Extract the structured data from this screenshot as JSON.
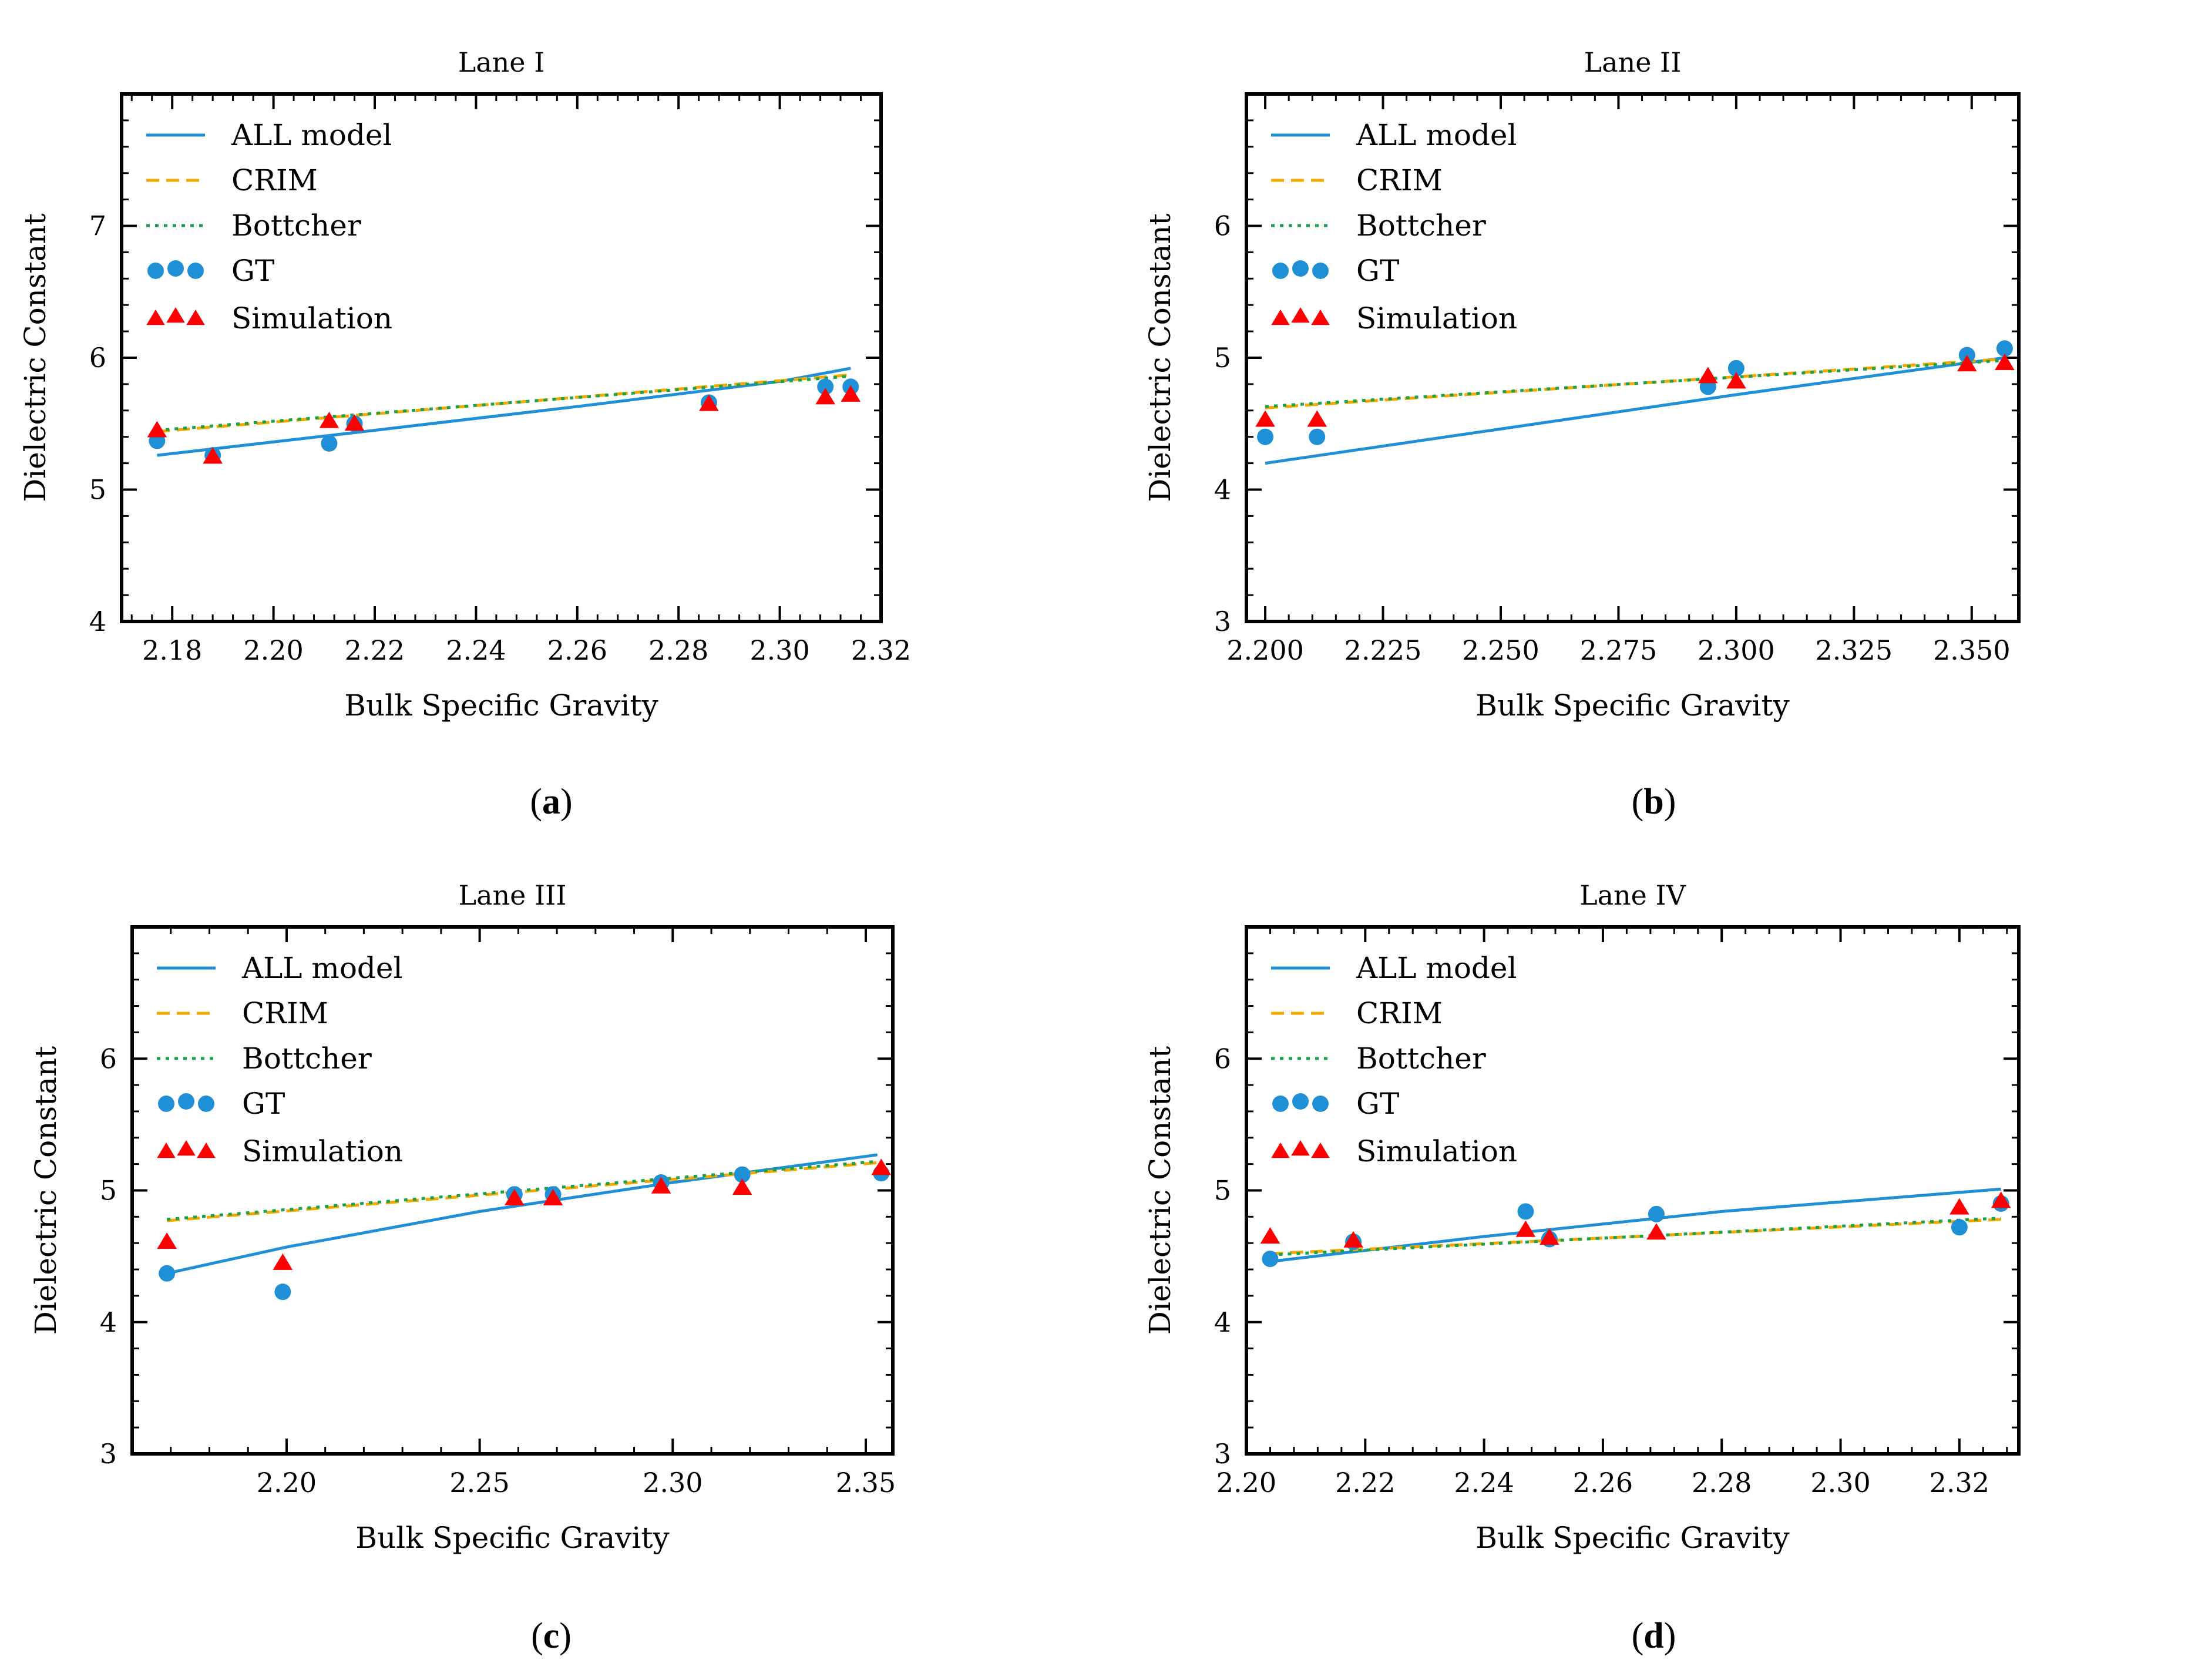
{
  "colors": {
    "all": "#1f8fd6",
    "crim": "#f5a800",
    "bottcher": "#1aa34a",
    "gt": "#1f8fd6",
    "sim": "#ff0000"
  },
  "chart_data": [
    {
      "id": "a",
      "type": "line+scatter",
      "title": "Lane I",
      "caption_letter": "a",
      "xlabel": "Bulk Specific Gravity",
      "ylabel": "Dielectric Constant",
      "xlim": [
        2.17,
        2.32
      ],
      "ylim": [
        4,
        8
      ],
      "xticks": [
        2.18,
        2.2,
        2.22,
        2.24,
        2.26,
        2.28,
        2.3,
        2.32
      ],
      "xdec": 2,
      "yticks": [
        4,
        5,
        6,
        7
      ],
      "ydec": 0,
      "yminor": 0.2,
      "legend": [
        "ALL model",
        "CRIM",
        "Bottcher",
        "GT",
        "Simulation"
      ],
      "all_model": {
        "x": [
          2.177,
          2.22,
          2.26,
          2.3,
          2.314
        ],
        "y": [
          5.26,
          5.45,
          5.63,
          5.82,
          5.92
        ]
      },
      "crim": {
        "x": [
          2.177,
          2.314
        ],
        "y": [
          5.44,
          5.87
        ]
      },
      "bottcher": {
        "x": [
          2.177,
          2.314
        ],
        "y": [
          5.45,
          5.86
        ]
      },
      "gt": {
        "x": [
          2.177,
          2.188,
          2.211,
          2.216,
          2.286,
          2.309,
          2.314
        ],
        "y": [
          5.37,
          5.26,
          5.35,
          5.5,
          5.66,
          5.78,
          5.78
        ]
      },
      "simulation": {
        "x": [
          2.177,
          2.188,
          2.211,
          2.216,
          2.286,
          2.309,
          2.314
        ],
        "y": [
          5.45,
          5.25,
          5.52,
          5.5,
          5.65,
          5.7,
          5.72
        ]
      }
    },
    {
      "id": "b",
      "type": "line+scatter",
      "title": "Lane II",
      "caption_letter": "b",
      "xlabel": "Bulk Specific Gravity",
      "ylabel": "Dielectric Constant",
      "xlim": [
        2.196,
        2.36
      ],
      "ylim": [
        3,
        7
      ],
      "xticks": [
        2.2,
        2.225,
        2.25,
        2.275,
        2.3,
        2.325,
        2.35
      ],
      "xdec": 3,
      "yticks": [
        3,
        4,
        5,
        6
      ],
      "ydec": 0,
      "yminor": 0.2,
      "legend": [
        "ALL model",
        "CRIM",
        "Bottcher",
        "GT",
        "Simulation"
      ],
      "all_model": {
        "x": [
          2.2,
          2.25,
          2.3,
          2.357
        ],
        "y": [
          4.2,
          4.46,
          4.72,
          5.0
        ]
      },
      "crim": {
        "x": [
          2.2,
          2.357
        ],
        "y": [
          4.62,
          4.99
        ]
      },
      "bottcher": {
        "x": [
          2.2,
          2.357
        ],
        "y": [
          4.63,
          4.98
        ]
      },
      "gt": {
        "x": [
          2.2,
          2.211,
          2.294,
          2.3,
          2.349,
          2.357
        ],
        "y": [
          4.4,
          4.4,
          4.78,
          4.92,
          5.02,
          5.07
        ]
      },
      "simulation": {
        "x": [
          2.2,
          2.211,
          2.294,
          2.3,
          2.349,
          2.357
        ],
        "y": [
          4.53,
          4.53,
          4.86,
          4.82,
          4.95,
          4.96
        ]
      }
    },
    {
      "id": "c",
      "type": "line+scatter",
      "title": "Lane III",
      "caption_letter": "c",
      "xlabel": "Bulk Specific Gravity",
      "ylabel": "Dielectric Constant",
      "xlim": [
        2.16,
        2.357
      ],
      "ylim": [
        3,
        7
      ],
      "xticks": [
        2.2,
        2.25,
        2.3,
        2.35
      ],
      "xdec": 2,
      "yticks": [
        3,
        4,
        5,
        6
      ],
      "ydec": 0,
      "yminor": 0.2,
      "legend": [
        "ALL model",
        "CRIM",
        "Bottcher",
        "GT",
        "Simulation"
      ],
      "all_model": {
        "x": [
          2.169,
          2.2,
          2.25,
          2.3,
          2.353
        ],
        "y": [
          4.37,
          4.57,
          4.84,
          5.06,
          5.27
        ]
      },
      "crim": {
        "x": [
          2.169,
          2.353
        ],
        "y": [
          4.77,
          5.21
        ]
      },
      "bottcher": {
        "x": [
          2.169,
          2.353
        ],
        "y": [
          4.78,
          5.22
        ]
      },
      "gt": {
        "x": [
          2.169,
          2.199,
          2.259,
          2.269,
          2.297,
          2.318,
          2.354
        ],
        "y": [
          4.37,
          4.23,
          4.97,
          4.97,
          5.06,
          5.12,
          5.13
        ]
      },
      "simulation": {
        "x": [
          2.169,
          2.199,
          2.259,
          2.269,
          2.297,
          2.318,
          2.354
        ],
        "y": [
          4.61,
          4.45,
          4.94,
          4.94,
          5.03,
          5.02,
          5.17
        ]
      }
    },
    {
      "id": "d",
      "type": "line+scatter",
      "title": "Lane IV",
      "caption_letter": "d",
      "xlabel": "Bulk Specific Gravity",
      "ylabel": "Dielectric Constant",
      "xlim": [
        2.2,
        2.33
      ],
      "ylim": [
        3,
        7
      ],
      "xticks": [
        2.2,
        2.22,
        2.24,
        2.26,
        2.28,
        2.3,
        2.32
      ],
      "xdec": 2,
      "yticks": [
        3,
        4,
        5,
        6
      ],
      "ydec": 0,
      "yminor": 0.2,
      "legend": [
        "ALL model",
        "CRIM",
        "Bottcher",
        "GT",
        "Simulation"
      ],
      "all_model": {
        "x": [
          2.204,
          2.24,
          2.28,
          2.327
        ],
        "y": [
          4.46,
          4.65,
          4.84,
          5.01
        ]
      },
      "crim": {
        "x": [
          2.204,
          2.327
        ],
        "y": [
          4.52,
          4.78
        ]
      },
      "bottcher": {
        "x": [
          2.204,
          2.327
        ],
        "y": [
          4.51,
          4.79
        ]
      },
      "gt": {
        "x": [
          2.204,
          2.218,
          2.247,
          2.251,
          2.269,
          2.32,
          2.327
        ],
        "y": [
          4.48,
          4.61,
          4.84,
          4.63,
          4.82,
          4.72,
          4.9
        ]
      },
      "simulation": {
        "x": [
          2.204,
          2.218,
          2.247,
          2.251,
          2.269,
          2.32,
          2.327
        ],
        "y": [
          4.65,
          4.62,
          4.7,
          4.64,
          4.68,
          4.87,
          4.92
        ]
      }
    }
  ]
}
